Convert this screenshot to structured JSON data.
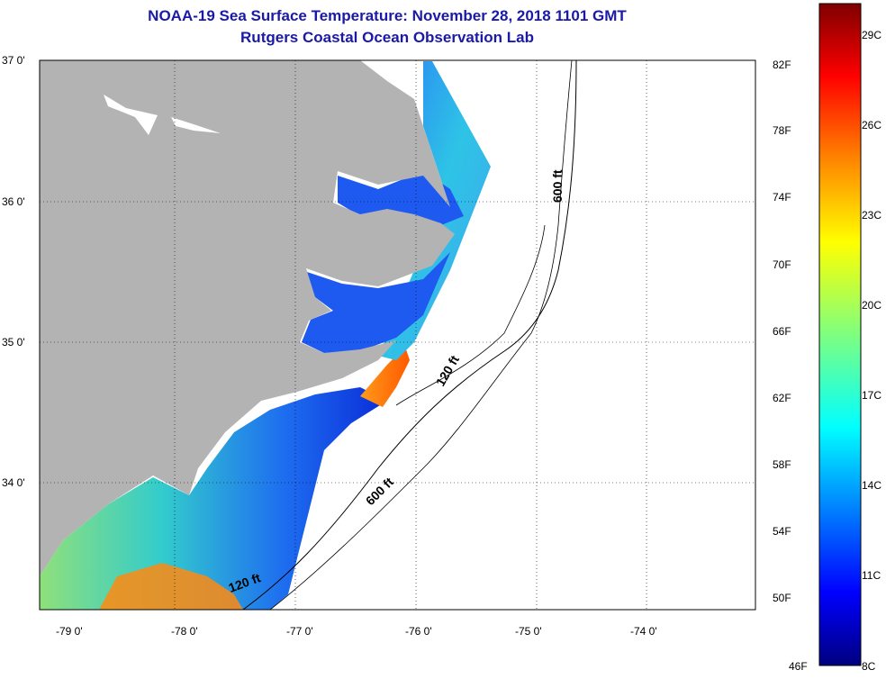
{
  "title": "NOAA-19 Sea Surface Temperature:  November 28, 2018 1101 GMT",
  "subtitle": "Rutgers Coastal Ocean Observation Lab",
  "lat_labels": [
    "37 0'",
    "36 0'",
    "35 0'",
    "34 0'"
  ],
  "lon_labels": [
    "-79 0'",
    "-78 0'",
    "-77 0'",
    "-76 0'",
    "-75 0'",
    "-74 0'"
  ],
  "contour_labels": {
    "c600_north": "600 ft",
    "c120_mid": "120 ft",
    "c600_south": "600 ft",
    "c120_south": "120 ft"
  },
  "colorbar": {
    "fahrenheit": [
      "82F",
      "78F",
      "74F",
      "70F",
      "66F",
      "62F",
      "58F",
      "54F",
      "50F",
      "46F"
    ],
    "celsius": [
      "29C",
      "26C",
      "23C",
      "20C",
      "17C",
      "14C",
      "11C",
      "8C"
    ],
    "colors": [
      "#00007f",
      "#0000ff",
      "#007fff",
      "#00ffff",
      "#7fff7f",
      "#ffff00",
      "#ff7f00",
      "#ff0000",
      "#7f0000"
    ]
  },
  "colors": {
    "land": "#b3b3b3",
    "title": "#1a1aa6"
  }
}
